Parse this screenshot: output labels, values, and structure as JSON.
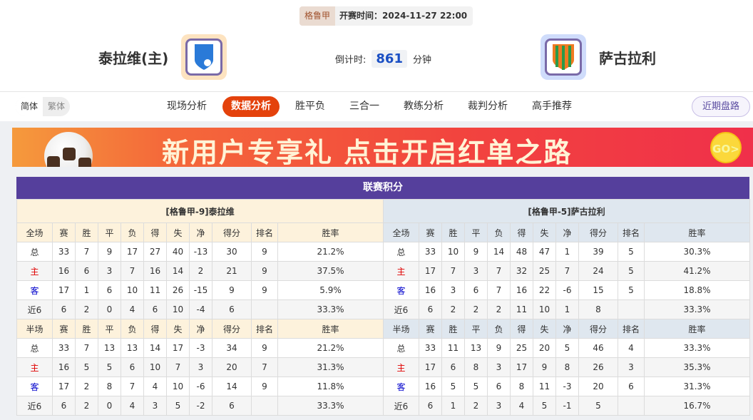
{
  "header": {
    "league": "格鲁甲",
    "kickoff": "开赛时间：2024-11-27 22:00",
    "home_team": "泰拉维(主)",
    "away_team": "萨古拉利",
    "countdown_label": "倒计时:",
    "countdown_value": "861",
    "countdown_unit": "分钟"
  },
  "nav": {
    "lang": [
      "简体",
      "繁体"
    ],
    "tabs": [
      "现场分析",
      "数据分析",
      "胜平负",
      "三合一",
      "教练分析",
      "裁判分析",
      "高手推荐"
    ],
    "active_tab": "数据分析",
    "recent_button": "近期盘路"
  },
  "banner": {
    "text": "新用户专享礼  点击开启红单之路",
    "go": "GO>"
  },
  "standings": {
    "title": "联赛积分",
    "columns": [
      "赛",
      "胜",
      "平",
      "负",
      "得",
      "失",
      "净",
      "得分",
      "排名",
      "胜率"
    ],
    "sections": [
      "全场",
      "半场"
    ],
    "teams": [
      {
        "name": "[格鲁甲-9]泰拉维",
        "full": [
          [
            "总",
            "33",
            "7",
            "9",
            "17",
            "27",
            "40",
            "-13",
            "30",
            "9",
            "21.2%"
          ],
          [
            "主",
            "16",
            "6",
            "3",
            "7",
            "16",
            "14",
            "2",
            "21",
            "9",
            "37.5%"
          ],
          [
            "客",
            "17",
            "1",
            "6",
            "10",
            "11",
            "26",
            "-15",
            "9",
            "9",
            "5.9%"
          ],
          [
            "近6",
            "6",
            "2",
            "0",
            "4",
            "6",
            "10",
            "-4",
            "6",
            "",
            "33.3%"
          ]
        ],
        "half": [
          [
            "总",
            "33",
            "7",
            "13",
            "13",
            "14",
            "17",
            "-3",
            "34",
            "9",
            "21.2%"
          ],
          [
            "主",
            "16",
            "5",
            "5",
            "6",
            "10",
            "7",
            "3",
            "20",
            "7",
            "31.3%"
          ],
          [
            "客",
            "17",
            "2",
            "8",
            "7",
            "4",
            "10",
            "-6",
            "14",
            "9",
            "11.8%"
          ],
          [
            "近6",
            "6",
            "2",
            "0",
            "4",
            "3",
            "5",
            "-2",
            "6",
            "",
            "33.3%"
          ]
        ]
      },
      {
        "name": "[格鲁甲-5]萨古拉利",
        "full": [
          [
            "总",
            "33",
            "10",
            "9",
            "14",
            "48",
            "47",
            "1",
            "39",
            "5",
            "30.3%"
          ],
          [
            "主",
            "17",
            "7",
            "3",
            "7",
            "32",
            "25",
            "7",
            "24",
            "5",
            "41.2%"
          ],
          [
            "客",
            "16",
            "3",
            "6",
            "7",
            "16",
            "22",
            "-6",
            "15",
            "5",
            "18.8%"
          ],
          [
            "近6",
            "6",
            "2",
            "2",
            "2",
            "11",
            "10",
            "1",
            "8",
            "",
            "33.3%"
          ]
        ],
        "half": [
          [
            "总",
            "33",
            "11",
            "13",
            "9",
            "25",
            "20",
            "5",
            "46",
            "4",
            "33.3%"
          ],
          [
            "主",
            "17",
            "6",
            "8",
            "3",
            "17",
            "9",
            "8",
            "26",
            "3",
            "35.3%"
          ],
          [
            "客",
            "16",
            "5",
            "5",
            "6",
            "8",
            "11",
            "-3",
            "20",
            "6",
            "31.3%"
          ],
          [
            "近6",
            "6",
            "1",
            "2",
            "3",
            "4",
            "5",
            "-1",
            "5",
            "",
            "16.7%"
          ]
        ]
      }
    ]
  },
  "colors": {
    "accent": "#e4420c",
    "title_bar": "#553f9c",
    "home_red": "#e00000",
    "away_blue": "#0000cc"
  }
}
